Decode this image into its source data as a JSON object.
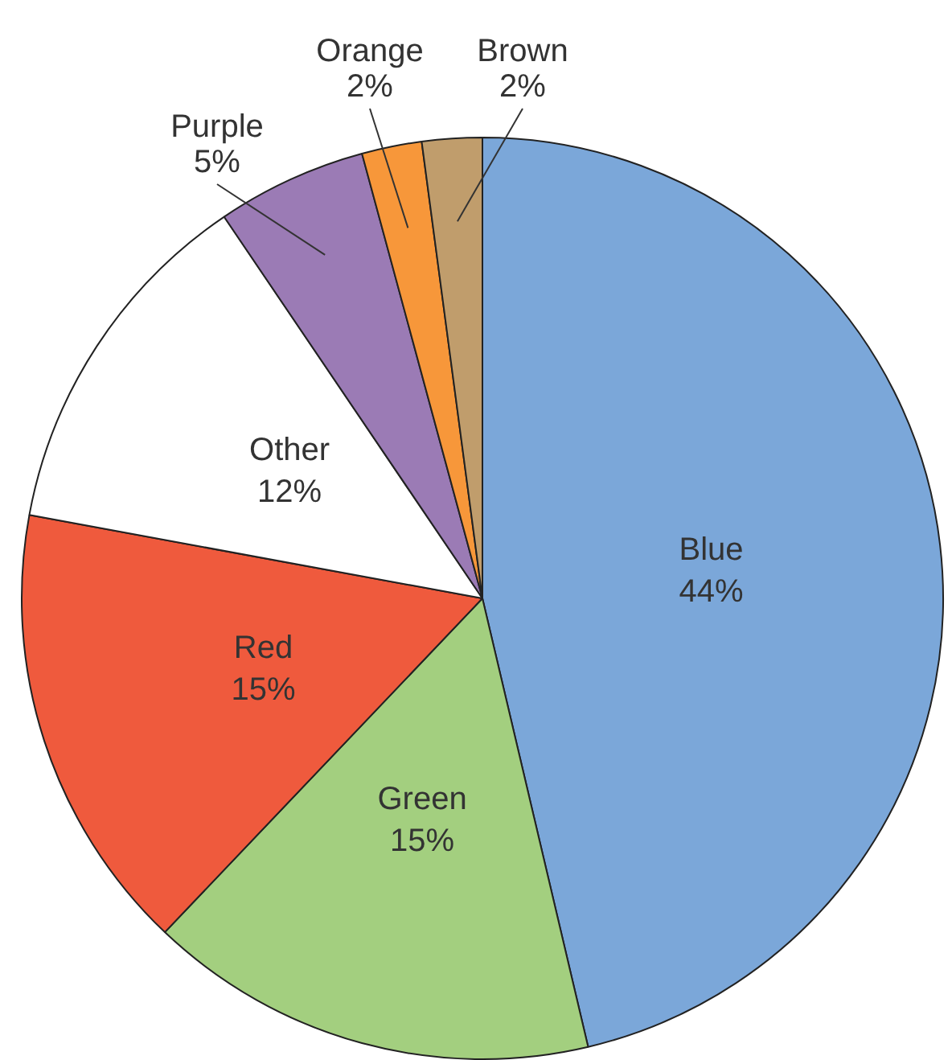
{
  "chart_data": {
    "type": "pie",
    "categories": [
      "Blue",
      "Green",
      "Red",
      "Other",
      "Purple",
      "Orange",
      "Brown"
    ],
    "values": [
      44,
      15,
      15,
      12,
      5,
      2,
      2
    ],
    "value_labels": [
      "44%",
      "15%",
      "15%",
      "12%",
      "5%",
      "2%",
      "2%"
    ],
    "colors": [
      "#7ba7d9",
      "#a3cf7f",
      "#ef5a3d",
      "#ffffff",
      "#9b7bb5",
      "#f7973a",
      "#c09d6c"
    ],
    "legend": false
  }
}
